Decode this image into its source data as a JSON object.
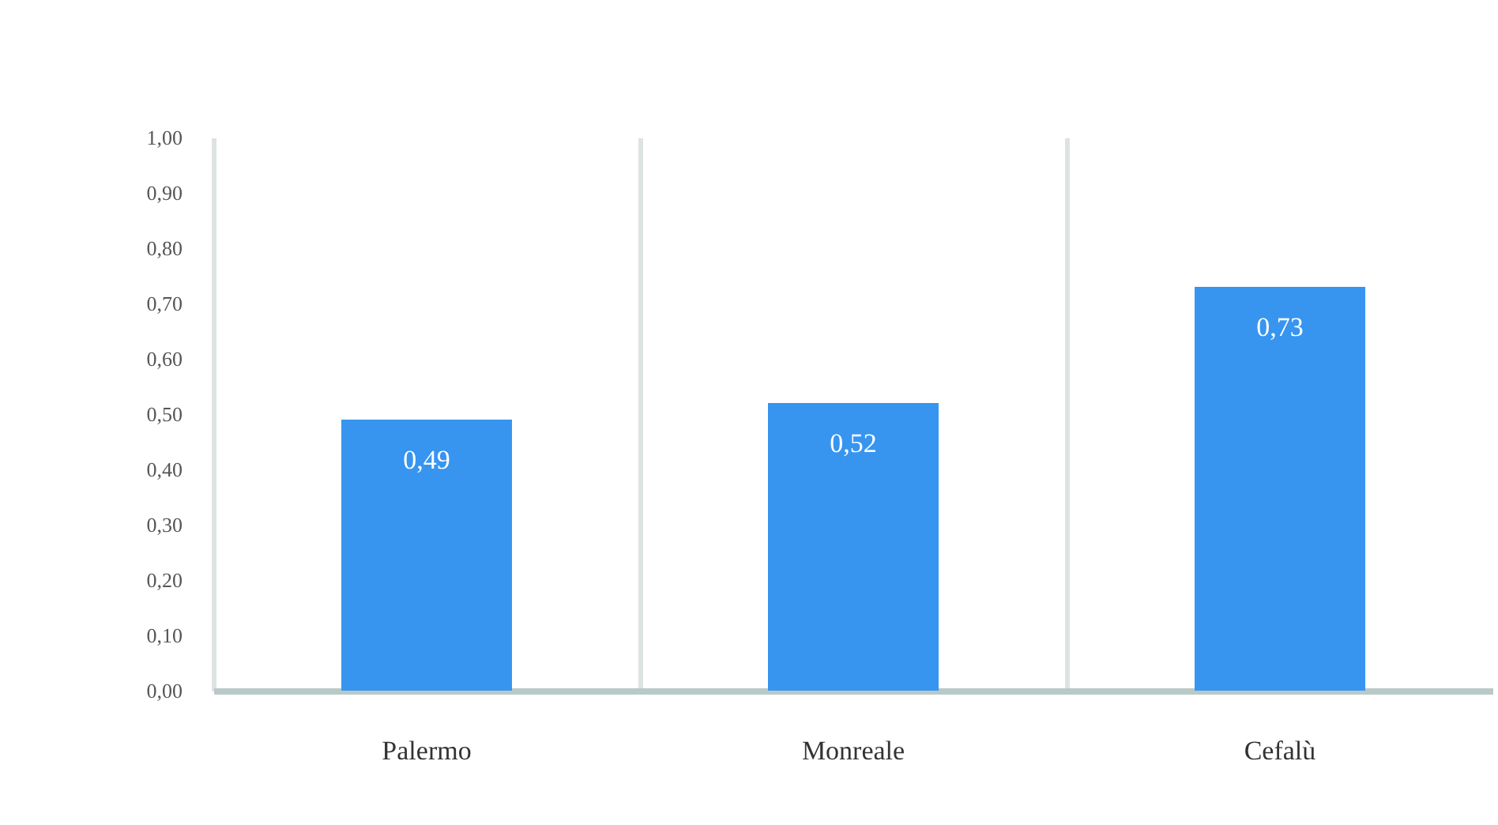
{
  "chart_data": {
    "type": "bar",
    "categories": [
      "Palermo",
      "Monreale",
      "Cefalù"
    ],
    "series": [
      {
        "color": "#3795f0",
        "values": [
          0.49,
          0.52,
          0.73
        ],
        "value_labels": [
          "0,49",
          "0,52",
          "0,73"
        ]
      }
    ],
    "ylim": [
      0,
      1
    ],
    "yticks": [
      {
        "value": 0,
        "label": "0,00"
      },
      {
        "value": 0.1,
        "label": "0,10"
      },
      {
        "value": 0.2,
        "label": "0,20"
      },
      {
        "value": 0.3,
        "label": "0,30"
      },
      {
        "value": 0.4,
        "label": "0,40"
      },
      {
        "value": 0.5,
        "label": "0,50"
      },
      {
        "value": 0.6,
        "label": "0,60"
      },
      {
        "value": 0.7,
        "label": "0,70"
      },
      {
        "value": 0.8,
        "label": "0,80"
      },
      {
        "value": 0.9,
        "label": "0,90"
      },
      {
        "value": 1,
        "label": "1,00"
      }
    ],
    "grid": "x"
  }
}
